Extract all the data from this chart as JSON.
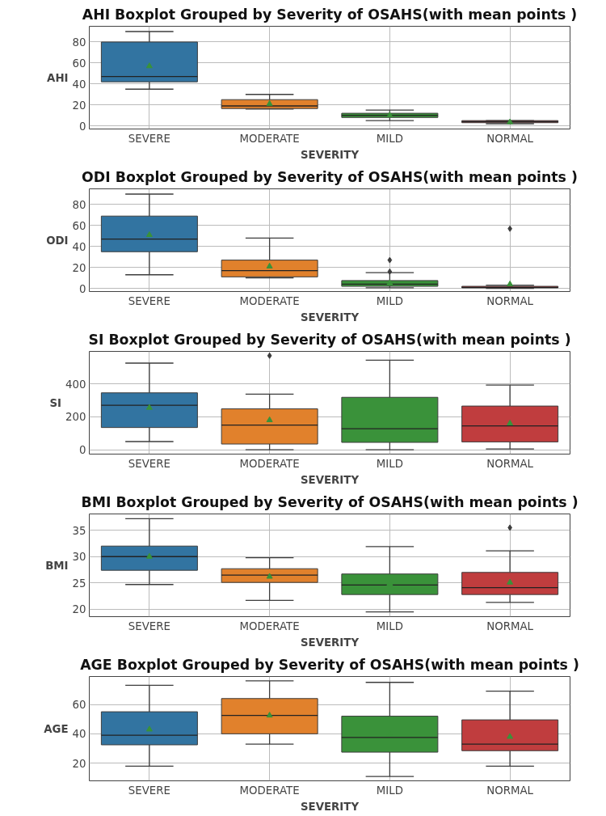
{
  "chart_data": [
    {
      "type": "box",
      "title": "AHI Boxplot Grouped by Severity of OSAHS(with mean points )",
      "xlabel": "SEVERITY",
      "ylabel": "AHI",
      "categories": [
        "SEVERE",
        "MODERATE",
        "MILD",
        "NORMAL"
      ],
      "colors": [
        "#3274a1",
        "#e1812c",
        "#3a923a",
        "#c03d3e"
      ],
      "ylim": [
        -3,
        95
      ],
      "yticks": [
        0,
        20,
        40,
        60,
        80
      ],
      "grid": true,
      "marker": "triangle",
      "boxes": [
        {
          "low": 35,
          "q1": 42,
          "median": 47,
          "q3": 80,
          "high": 90,
          "mean": 57
        },
        {
          "low": 16,
          "q1": 16.5,
          "median": 19,
          "q3": 25,
          "high": 30,
          "mean": 21
        },
        {
          "low": 5,
          "q1": 8,
          "median": 10,
          "q3": 12,
          "high": 15,
          "mean": 10
        },
        {
          "low": 2,
          "q1": 3,
          "median": 4,
          "q3": 5,
          "high": 5,
          "mean": 3.5
        }
      ]
    },
    {
      "type": "box",
      "title": "ODI Boxplot Grouped by Severity of OSAHS(with mean points )",
      "xlabel": "SEVERITY",
      "ylabel": "ODI",
      "categories": [
        "SEVERE",
        "MODERATE",
        "MILD",
        "NORMAL"
      ],
      "colors": [
        "#3274a1",
        "#e1812c",
        "#3a923a",
        "#c03d3e"
      ],
      "ylim": [
        -3,
        95
      ],
      "yticks": [
        0,
        20,
        40,
        60,
        80
      ],
      "grid": true,
      "marker": "triangle",
      "boxes": [
        {
          "low": 13,
          "q1": 35,
          "median": 47,
          "q3": 69,
          "high": 90,
          "mean": 51
        },
        {
          "low": 10,
          "q1": 11,
          "median": 17,
          "q3": 27,
          "high": 48,
          "mean": 21
        },
        {
          "low": 0.5,
          "q1": 2,
          "median": 4,
          "q3": 7.5,
          "high": 15,
          "mean": 5,
          "outliers": [
            16,
            27
          ]
        },
        {
          "low": 0,
          "q1": 0.5,
          "median": 1,
          "q3": 2,
          "high": 3,
          "mean": 4,
          "outliers": [
            57
          ]
        }
      ]
    },
    {
      "type": "box",
      "title": "SI Boxplot Grouped by Severity of OSAHS(with mean points )",
      "xlabel": "SEVERITY",
      "ylabel": "SI",
      "categories": [
        "SEVERE",
        "MODERATE",
        "MILD",
        "NORMAL"
      ],
      "colors": [
        "#3274a1",
        "#e1812c",
        "#3a923a",
        "#c03d3e"
      ],
      "ylim": [
        -26,
        596
      ],
      "yticks": [
        0,
        200,
        400
      ],
      "grid": true,
      "marker": "triangle",
      "boxes": [
        {
          "low": 50,
          "q1": 135,
          "median": 270,
          "q3": 345,
          "high": 525,
          "mean": 255
        },
        {
          "low": 0,
          "q1": 35,
          "median": 150,
          "q3": 248,
          "high": 337,
          "mean": 180,
          "outliers": [
            570
          ]
        },
        {
          "low": 0,
          "q1": 45,
          "median": 128,
          "q3": 318,
          "high": 543
        },
        {
          "low": 5,
          "q1": 48,
          "median": 145,
          "q3": 265,
          "high": 392,
          "mean": 160
        }
      ]
    },
    {
      "type": "box",
      "title": "BMI Boxplot Grouped by Severity of OSAHS(with mean points )",
      "xlabel": "SEVERITY",
      "ylabel": "BMI",
      "categories": [
        "SEVERE",
        "MODERATE",
        "MILD",
        "NORMAL"
      ],
      "colors": [
        "#3274a1",
        "#e1812c",
        "#3a923a",
        "#c03d3e"
      ],
      "ylim": [
        18.6,
        38.1
      ],
      "yticks": [
        20,
        25,
        30,
        35
      ],
      "grid": true,
      "marker": "triangle",
      "boxes": [
        {
          "low": 24.7,
          "q1": 27.4,
          "median": 30,
          "q3": 32,
          "high": 37.2,
          "mean": 30
        },
        {
          "low": 21.7,
          "q1": 25.1,
          "median": 26.5,
          "q3": 27.7,
          "high": 29.8,
          "mean": 26.2
        },
        {
          "low": 19.5,
          "q1": 22.8,
          "median": 24.6,
          "q3": 26.7,
          "high": 31.9,
          "mean": 24.9
        },
        {
          "low": 21.3,
          "q1": 22.8,
          "median": 24.1,
          "q3": 27,
          "high": 31.1,
          "mean": 25.1,
          "outliers": [
            35.5
          ]
        }
      ]
    },
    {
      "type": "box",
      "title": "AGE Boxplot Grouped by Severity of OSAHS(with mean points )",
      "xlabel": "SEVERITY",
      "ylabel": "AGE",
      "categories": [
        "SEVERE",
        "MODERATE",
        "MILD",
        "NORMAL"
      ],
      "colors": [
        "#3274a1",
        "#e1812c",
        "#3a923a",
        "#c03d3e"
      ],
      "ylim": [
        8,
        79
      ],
      "yticks": [
        20,
        40,
        60
      ],
      "grid": true,
      "marker": "triangle",
      "boxes": [
        {
          "low": 18,
          "q1": 32.5,
          "median": 39,
          "q3": 55,
          "high": 73,
          "mean": 43
        },
        {
          "low": 33,
          "q1": 40,
          "median": 52.5,
          "q3": 64,
          "high": 76,
          "mean": 52.5
        },
        {
          "low": 11,
          "q1": 27.5,
          "median": 37.5,
          "q3": 52,
          "high": 75,
          "mean": 40
        },
        {
          "low": 18,
          "q1": 28.5,
          "median": 33,
          "q3": 49.5,
          "high": 69,
          "mean": 38
        }
      ]
    }
  ]
}
